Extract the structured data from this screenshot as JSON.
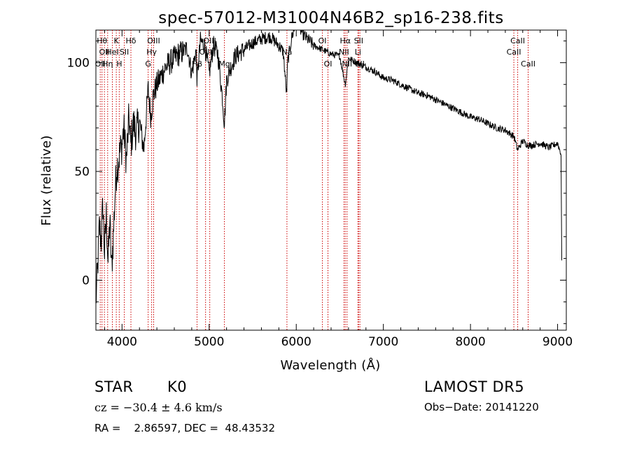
{
  "chart_data": {
    "type": "line",
    "title": "spec-57012-M31004N46B2_sp16-238.fits",
    "xlabel": "Wavelength (Å)",
    "ylabel": "Flux (relative)",
    "xlim": [
      3700,
      9100
    ],
    "ylim": [
      -23,
      115
    ],
    "x_ticks": [
      4000,
      5000,
      6000,
      7000,
      8000,
      9000
    ],
    "y_ticks": [
      0,
      50,
      100
    ],
    "x_tick_labels": [
      "4000",
      "5000",
      "6000",
      "7000",
      "8000",
      "9000"
    ],
    "y_tick_labels": [
      "0",
      "50",
      "100"
    ],
    "grid": false,
    "line_color": "#000000",
    "marker_color": "#cc0000",
    "series": [
      {
        "x": [
          3700,
          3720,
          3740,
          3760,
          3780,
          3800,
          3820,
          3840,
          3860,
          3880,
          3900,
          3920,
          3940,
          3960,
          3980,
          4000,
          4020,
          4050,
          4080,
          4100,
          4130,
          4160,
          4200,
          4250,
          4300,
          4330,
          4360,
          4400,
          4450,
          4500,
          4550,
          4600,
          4650,
          4700,
          4750,
          4800,
          4850,
          4861,
          4900,
          4950,
          5000,
          5050,
          5100,
          5150,
          5175,
          5200,
          5250,
          5300,
          5400,
          5500,
          5600,
          5700,
          5800,
          5850,
          5890,
          5900,
          5950,
          6000,
          6030,
          6050,
          6100,
          6200,
          6300,
          6400,
          6500,
          6563,
          6600,
          6700,
          6800,
          6900,
          7000,
          7100,
          7200,
          7300,
          7400,
          7500,
          7600,
          7700,
          7800,
          7900,
          8000,
          8100,
          8200,
          8300,
          8400,
          8500,
          8540,
          8600,
          8662,
          8700,
          8800,
          8900,
          9000,
          9040,
          9050
        ],
        "y": [
          -10,
          5,
          25,
          18,
          35,
          12,
          30,
          8,
          28,
          5,
          20,
          40,
          52,
          55,
          60,
          62,
          70,
          55,
          75,
          62,
          72,
          68,
          73,
          60,
          88,
          75,
          85,
          90,
          94,
          98,
          100,
          102,
          104,
          105,
          107,
          95,
          106,
          92,
          110,
          108,
          95,
          108,
          104,
          85,
          72,
          92,
          98,
          103,
          106,
          109,
          111,
          112,
          108,
          105,
          85,
          100,
          112,
          118,
          130,
          115,
          112,
          108,
          106,
          104,
          103,
          90,
          102,
          100,
          98,
          96,
          93,
          92,
          90,
          88,
          86,
          85,
          83,
          81,
          79,
          77,
          75,
          74,
          72,
          70,
          69,
          66,
          60,
          64,
          62,
          62,
          63,
          61,
          63,
          58,
          -5
        ]
      }
    ],
    "lines": [
      {
        "w": 3750,
        "label": "OII",
        "row": 2
      },
      {
        "w": 3770,
        "label": "Hθ",
        "row": 0
      },
      {
        "w": 3798,
        "label": "OII",
        "row": 1
      },
      {
        "w": 3835,
        "label": "Hη",
        "row": 2
      },
      {
        "w": 3889,
        "label": "HeI",
        "row": 1
      },
      {
        "w": 3934,
        "label": "K",
        "row": 0
      },
      {
        "w": 3968,
        "label": "H",
        "row": 2
      },
      {
        "w": 4026,
        "label": "SII",
        "row": 1
      },
      {
        "w": 4102,
        "label": "Hδ",
        "row": 0
      },
      {
        "w": 4300,
        "label": "G",
        "row": 2
      },
      {
        "w": 4340,
        "label": "Hγ",
        "row": 1
      },
      {
        "w": 4363,
        "label": "OIII",
        "row": 0
      },
      {
        "w": 4861,
        "label": "Hβ",
        "row": 2
      },
      {
        "w": 4959,
        "label": "OIII",
        "row": 1
      },
      {
        "w": 5007,
        "label": "OIII",
        "row": 0
      },
      {
        "w": 5175,
        "label": "Mg",
        "row": 2
      },
      {
        "w": 5893,
        "label": "Na",
        "row": 1
      },
      {
        "w": 6300,
        "label": "OI",
        "row": 0
      },
      {
        "w": 6364,
        "label": "OI",
        "row": 2
      },
      {
        "w": 6548,
        "label": "NII",
        "row": 1
      },
      {
        "w": 6563,
        "label": "Hα",
        "row": 0
      },
      {
        "w": 6583,
        "label": "NII",
        "row": 2
      },
      {
        "w": 6708,
        "label": "Li",
        "row": 1
      },
      {
        "w": 6716,
        "label": "SII",
        "row": 0
      },
      {
        "w": 6731,
        "label": "SII",
        "row": 2
      },
      {
        "w": 8498,
        "label": "CaII",
        "row": 1
      },
      {
        "w": 8542,
        "label": "CaII",
        "row": 0
      },
      {
        "w": 8662,
        "label": "CaII",
        "row": 2
      }
    ]
  },
  "info": {
    "object_class": "STAR",
    "subclass": "K0",
    "survey": "LAMOST DR5",
    "cz_text": "cz = −30.4 ± 4.6 km/s",
    "obs_date": "Obs−Date: 20141220",
    "coords": "RA =    2.86597, DEC =  48.43532"
  }
}
